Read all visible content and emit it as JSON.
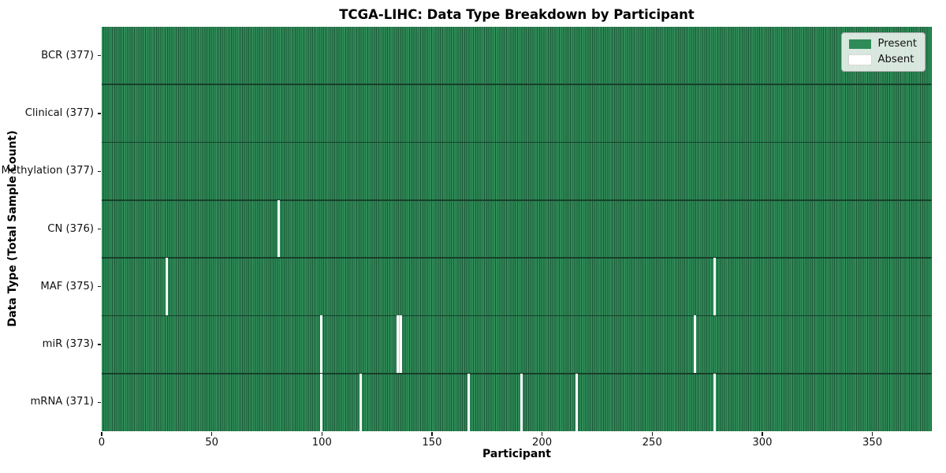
{
  "title": "TCGA-LIHC: Data Type Breakdown by Participant",
  "axes": {
    "x_label": "Participant",
    "y_label": "Data Type (Total Sample Count)"
  },
  "legend": {
    "items": [
      {
        "label": "Present",
        "color": "#2e8b57"
      },
      {
        "label": "Absent",
        "color": "#ffffff"
      }
    ]
  },
  "chart_data": {
    "type": "heatmap",
    "title": "TCGA-LIHC: Data Type Breakdown by Participant",
    "xlabel": "Participant",
    "ylabel": "Data Type (Total Sample Count)",
    "n_participants": 377,
    "xlim": [
      0,
      377
    ],
    "x_ticks": [
      0,
      50,
      100,
      150,
      200,
      250,
      300,
      350
    ],
    "legend_position": "upper right",
    "grid": false,
    "rows": [
      {
        "label": "BCR (377)",
        "data_type": "BCR",
        "total": 377,
        "absent_participants": []
      },
      {
        "label": "Clinical (377)",
        "data_type": "Clinical",
        "total": 377,
        "absent_participants": []
      },
      {
        "label": "Methylation (377)",
        "data_type": "Methylation",
        "total": 377,
        "absent_participants": []
      },
      {
        "label": "CN (376)",
        "data_type": "CN",
        "total": 376,
        "absent_participants": [
          80
        ]
      },
      {
        "label": "MAF (375)",
        "data_type": "MAF",
        "total": 375,
        "absent_participants": [
          29,
          278
        ]
      },
      {
        "label": "miR (373)",
        "data_type": "miR",
        "total": 373,
        "absent_participants": [
          99,
          134,
          135,
          269
        ]
      },
      {
        "label": "mRNA (371)",
        "data_type": "mRNA",
        "total": 371,
        "absent_participants": [
          99,
          117,
          166,
          190,
          215,
          278
        ]
      }
    ],
    "colors": {
      "present": "#2e8b57",
      "cell_edge": "#1f5839",
      "row_edge": "#16402a",
      "absent": "#ffffff",
      "absent_divider": "#cccccc"
    }
  }
}
